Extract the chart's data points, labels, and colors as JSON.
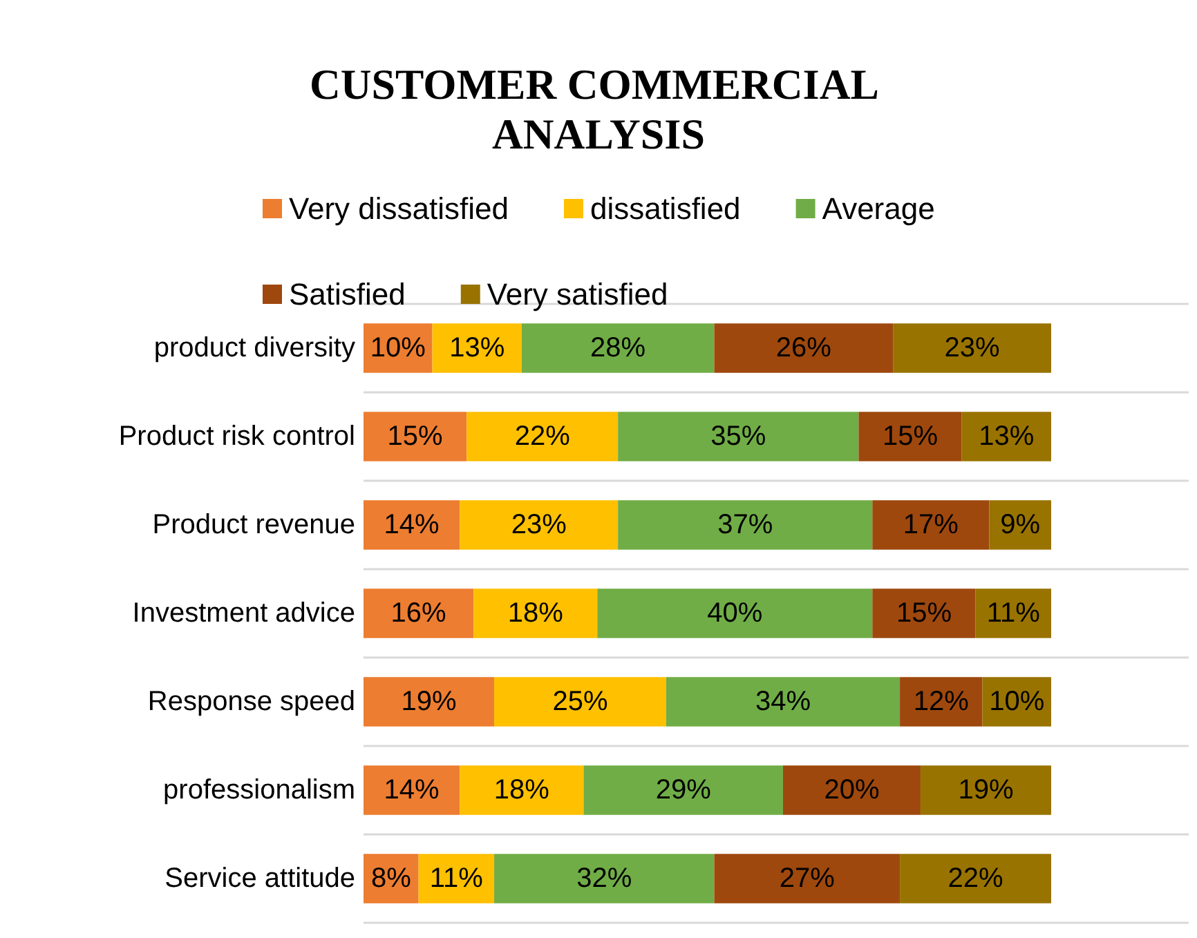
{
  "chart_data": {
    "type": "bar",
    "orientation": "horizontal",
    "stacked": true,
    "title": "CUSTOMER COMMERCIAL ANALYSIS",
    "categories": [
      "product diversity",
      "Product risk control",
      "Product revenue",
      "Investment advice",
      "Response speed",
      "professionalism",
      "Service attitude"
    ],
    "xlim": [
      0,
      120
    ],
    "tick_labels": "y",
    "grid": "y",
    "legend": "top",
    "series": [
      {
        "name": "Very dissatisfied",
        "color": "#ed7d31",
        "values": [
          10,
          15,
          14,
          16,
          19,
          14,
          8
        ],
        "value_labels": [
          "10%",
          "15%",
          "14%",
          "16%",
          "19%",
          "14%",
          "8%"
        ]
      },
      {
        "name": "dissatisfied",
        "color": "#ffc000",
        "values": [
          13,
          22,
          23,
          18,
          25,
          18,
          11
        ],
        "value_labels": [
          "13%",
          "22%",
          "23%",
          "18%",
          "25%",
          "18%",
          "11%"
        ]
      },
      {
        "name": "Average",
        "color": "#70ad47",
        "values": [
          28,
          35,
          37,
          40,
          34,
          29,
          32
        ],
        "value_labels": [
          "28%",
          "35%",
          "37%",
          "40%",
          "34%",
          "29%",
          "32%"
        ]
      },
      {
        "name": "Satisfied",
        "color": "#9e480e",
        "values": [
          26,
          15,
          17,
          15,
          12,
          20,
          27
        ],
        "value_labels": [
          "26%",
          "15%",
          "17%",
          "15%",
          "12%",
          "20%",
          "27%"
        ]
      },
      {
        "name": "Very satisfied",
        "color": "#997300",
        "values": [
          23,
          13,
          9,
          11,
          10,
          19,
          22
        ],
        "value_labels": [
          "23%",
          "13%",
          "9%",
          "11%",
          "10%",
          "19%",
          "22%"
        ]
      }
    ]
  }
}
